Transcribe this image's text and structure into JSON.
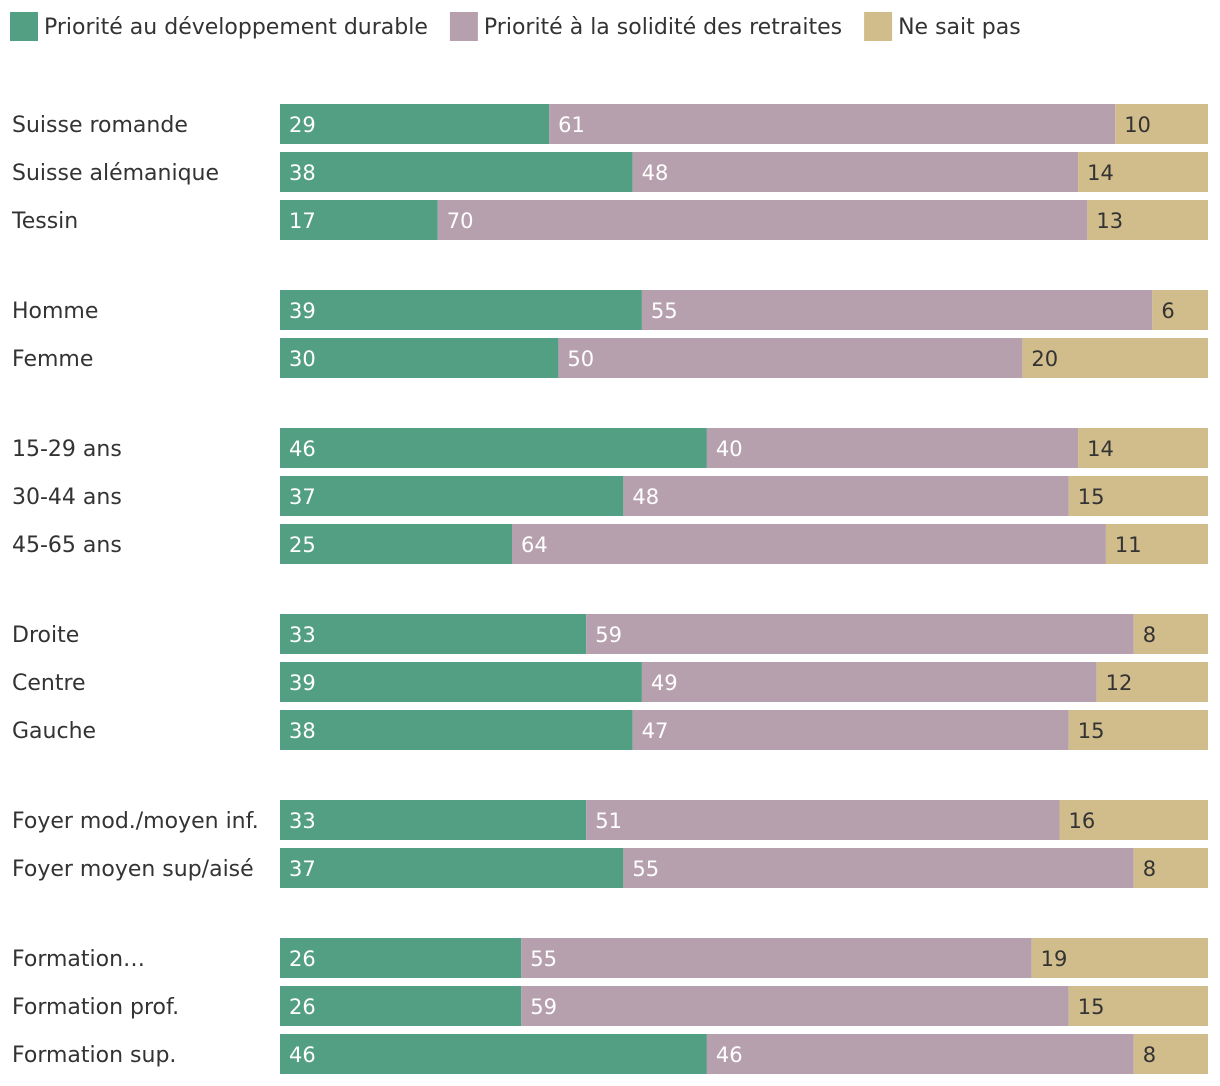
{
  "chart_data": {
    "type": "bar",
    "orientation": "horizontal",
    "stacked": true,
    "normalized": true,
    "legend_position": "top-left",
    "grid": false,
    "series": [
      {
        "name": "Priorité au développement durable",
        "color": "#529f84",
        "label_color": "#ffffff"
      },
      {
        "name": "Priorité à la solidité des retraites",
        "color": "#b7a0ad",
        "label_color": "#ffffff"
      },
      {
        "name": "Ne sait pas",
        "color": "#d1bd8c",
        "label_color": "#333333"
      }
    ],
    "groups": [
      {
        "rows": [
          {
            "label": "Suisse romande",
            "values": [
              29,
              61,
              10
            ]
          },
          {
            "label": "Suisse alémanique",
            "values": [
              38,
              48,
              14
            ]
          },
          {
            "label": "Tessin",
            "values": [
              17,
              70,
              13
            ]
          }
        ]
      },
      {
        "rows": [
          {
            "label": "Homme",
            "values": [
              39,
              55,
              6
            ]
          },
          {
            "label": "Femme",
            "values": [
              30,
              50,
              20
            ]
          }
        ]
      },
      {
        "rows": [
          {
            "label": "15-29 ans",
            "values": [
              46,
              40,
              14
            ]
          },
          {
            "label": "30-44 ans",
            "values": [
              37,
              48,
              15
            ]
          },
          {
            "label": "45-65 ans",
            "values": [
              25,
              64,
              11
            ]
          }
        ]
      },
      {
        "rows": [
          {
            "label": "Droite",
            "values": [
              33,
              59,
              8
            ]
          },
          {
            "label": "Centre",
            "values": [
              39,
              49,
              12
            ]
          },
          {
            "label": "Gauche",
            "values": [
              38,
              47,
              15
            ]
          }
        ]
      },
      {
        "rows": [
          {
            "label": "Foyer mod./moyen inf.",
            "values": [
              33,
              51,
              16
            ]
          },
          {
            "label": "Foyer moyen sup/aisé",
            "values": [
              37,
              55,
              8
            ]
          }
        ]
      },
      {
        "rows": [
          {
            "label": "Formation…",
            "values": [
              26,
              55,
              19
            ]
          },
          {
            "label": "Formation prof.",
            "values": [
              26,
              59,
              15
            ]
          },
          {
            "label": "Formation sup.",
            "values": [
              46,
              46,
              8
            ]
          }
        ]
      }
    ]
  }
}
